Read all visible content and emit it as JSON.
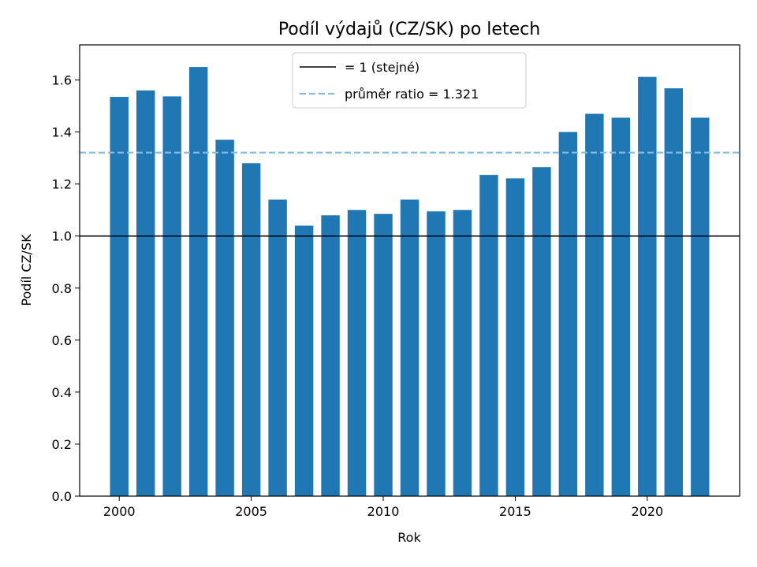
{
  "chart_data": {
    "type": "bar",
    "title": "Podíl výdajů (CZ/SK) po letech",
    "xlabel": "Rok",
    "ylabel": "Podíl CZ/SK",
    "x": [
      2000,
      2001,
      2002,
      2003,
      2004,
      2005,
      2006,
      2007,
      2008,
      2009,
      2010,
      2011,
      2012,
      2013,
      2014,
      2015,
      2016,
      2017,
      2018,
      2019,
      2020,
      2021,
      2022
    ],
    "values": [
      1.535,
      1.56,
      1.537,
      1.65,
      1.37,
      1.28,
      1.14,
      1.04,
      1.08,
      1.1,
      1.085,
      1.14,
      1.095,
      1.1,
      1.235,
      1.222,
      1.265,
      1.4,
      1.47,
      1.455,
      1.612,
      1.568,
      1.455
    ],
    "bar_color": "#1f77b4",
    "xlim": [
      1998.5,
      2023.5
    ],
    "ylim": [
      0,
      1.735
    ],
    "xticks": [
      2000,
      2005,
      2010,
      2015,
      2020
    ],
    "yticks": [
      "0.0",
      "0.2",
      "0.4",
      "0.6",
      "0.8",
      "1.0",
      "1.2",
      "1.4",
      "1.6"
    ],
    "grid": false,
    "reference_lines": [
      {
        "label": "= 1 (stejné)",
        "y": 1.0,
        "color": "#000000",
        "style": "solid"
      },
      {
        "label": "průměr ratio = 1.321",
        "y": 1.321,
        "color": "#86bcdf",
        "style": "dashed"
      }
    ],
    "legend_position": "top-center"
  }
}
